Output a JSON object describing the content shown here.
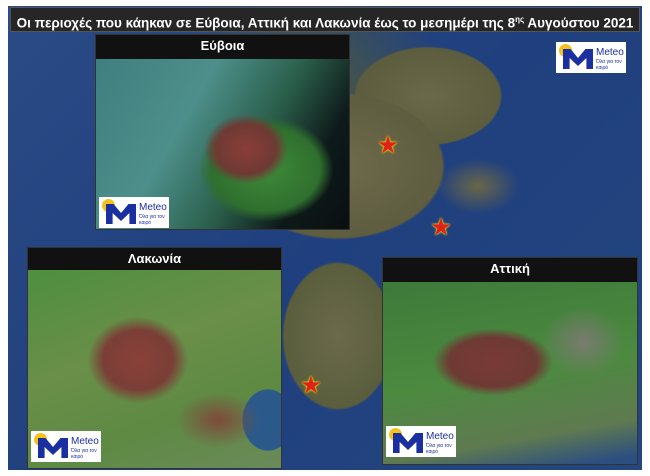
{
  "title": {
    "text_before": "Οι περιοχές που κάηκαν σε Εύβοια, Αττική και Λακωνία έως το μεσημέρι της 8",
    "superscript": "ης",
    "text_after": " Αυγούστου 2021"
  },
  "panels": {
    "euboea": "Εύβοια",
    "laconia": "Λακωνία",
    "attica": "Αττική"
  },
  "logo": {
    "name": "Meteo",
    "tagline": "Όλα για τον καιρό",
    "colors": {
      "blue": "#1a2fa0",
      "sun": "#f5c21b"
    }
  },
  "markers": {
    "icon": "red-star-icon",
    "count": 3,
    "color": "#e0201b"
  },
  "colors": {
    "burned_area": "#7a3a36",
    "vegetation": "#4c8a40"
  }
}
